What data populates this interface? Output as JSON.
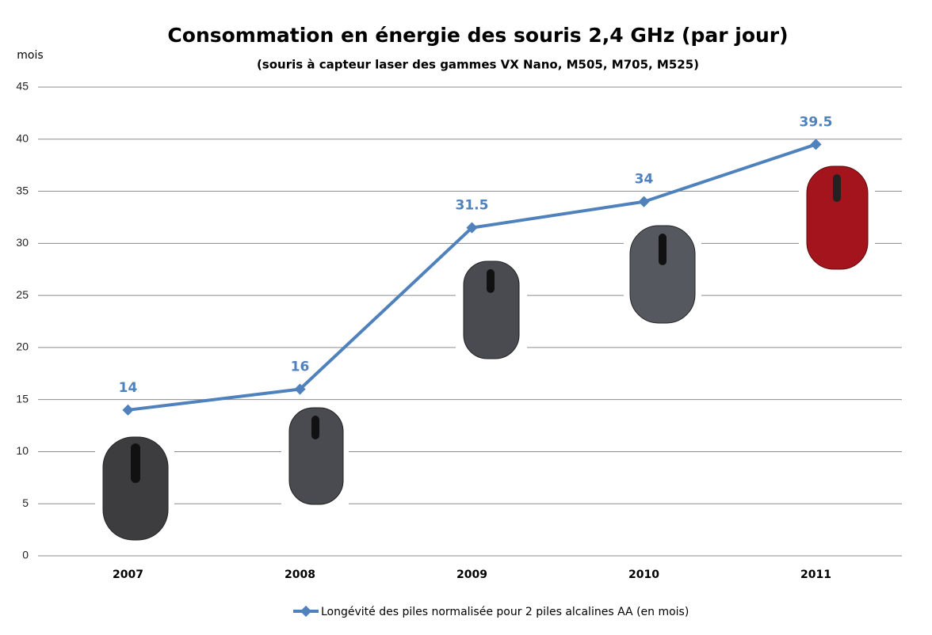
{
  "chart_data": {
    "type": "line",
    "title": "Consommation en énergie des souris 2,4 GHz (par jour)",
    "subtitle": "(souris à capteur laser des gammes VX Nano, M505, M705, M525)",
    "y_label": "mois",
    "categories": [
      "2007",
      "2008",
      "2009",
      "2010",
      "2011"
    ],
    "series": [
      {
        "name": "Longévité des piles normalisée pour 2 piles alcalines AA (en mois)",
        "color": "#4f81bd",
        "values": [
          14,
          16,
          31.5,
          34,
          39.5
        ]
      }
    ],
    "ylim": [
      0,
      45
    ],
    "yticks": [
      0,
      5,
      10,
      15,
      20,
      25,
      30,
      35,
      40,
      45
    ],
    "grid": true,
    "data_labels": true,
    "legend": "bottom"
  }
}
